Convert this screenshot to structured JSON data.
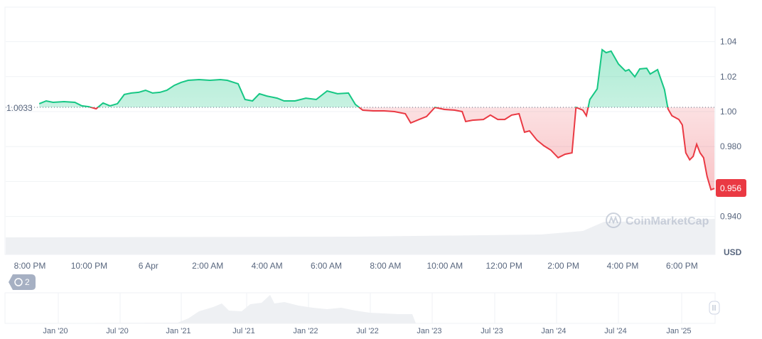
{
  "chart_data": {
    "type": "line",
    "baseline": 1.0033,
    "baseline_label": "1.0033",
    "current_price_label": "0.956",
    "unit_label": "USD",
    "watermark": "CoinMarketCap",
    "ylim": [
      0.93,
      1.05
    ],
    "y_ticks": [
      "1.04",
      "1.02",
      "1.00",
      "0.980",
      "0.940"
    ],
    "x_ticks": [
      "8:00 PM",
      "10:00 PM",
      "6 Apr",
      "2:00 AM",
      "4:00 AM",
      "6:00 AM",
      "8:00 AM",
      "10:00 AM",
      "12:00 PM",
      "2:00 PM",
      "4:00 PM",
      "6:00 PM"
    ],
    "grid": true,
    "colors": {
      "up": "#16c784",
      "down": "#ea3943",
      "grid": "#eff2f5",
      "volume": "#eef0f3"
    },
    "x": [
      "20:19",
      "20:33",
      "20:47",
      "21:09",
      "21:31",
      "21:45",
      "21:59",
      "22:14",
      "22:28",
      "22:42",
      "22:57",
      "23:11",
      "23:25",
      "23:40",
      "23:54",
      "00:08",
      "00:23",
      "00:37",
      "00:52",
      "01:06",
      "01:20",
      "01:42",
      "02:04",
      "02:25",
      "02:39",
      "03:01",
      "03:15",
      "03:30",
      "03:44",
      "03:59",
      "04:20",
      "04:34",
      "04:56",
      "05:18",
      "05:39",
      "06:01",
      "06:22",
      "06:44",
      "06:58",
      "07:13",
      "07:34",
      "07:56",
      "08:17",
      "08:39",
      "08:50",
      "09:07",
      "09:22",
      "09:39",
      "09:58",
      "10:19",
      "10:34",
      "10:41",
      "10:55",
      "11:17",
      "11:31",
      "11:46",
      "12:00",
      "12:14",
      "12:29",
      "12:40",
      "12:50",
      "13:05",
      "13:19",
      "13:33",
      "13:48",
      "14:02",
      "14:16",
      "14:24",
      "14:38",
      "14:45",
      "14:52",
      "15:07",
      "15:17",
      "15:25",
      "15:35",
      "15:50",
      "16:04",
      "16:11",
      "16:23",
      "16:33",
      "16:47",
      "16:54",
      "17:09",
      "17:23",
      "17:30",
      "17:38",
      "17:52",
      "17:59",
      "18:06",
      "18:14",
      "18:21",
      "18:28",
      "18:35",
      "18:42",
      "18:49",
      "18:57",
      "19:04"
    ],
    "values": [
      1.0045,
      1.0061,
      1.0053,
      1.0057,
      1.0053,
      1.0033,
      1.0028,
      1.0016,
      1.0049,
      1.0033,
      1.0045,
      1.0098,
      1.0106,
      1.011,
      1.0122,
      1.0106,
      1.011,
      1.0122,
      1.015,
      1.0167,
      1.0179,
      1.0183,
      1.0179,
      1.0183,
      1.0179,
      1.0159,
      1.0069,
      1.0061,
      1.0102,
      1.0089,
      1.0077,
      1.0061,
      1.0061,
      1.0077,
      1.0069,
      1.0118,
      1.0102,
      1.0106,
      1.0041,
      1.0008,
      1.0004,
      1.0004,
      1.0,
      0.9988,
      0.9935,
      0.9955,
      0.9972,
      1.0024,
      1.0012,
      1.0008,
      1.0,
      0.9943,
      0.9951,
      0.9955,
      0.998,
      0.9955,
      0.9955,
      0.998,
      0.9988,
      0.9882,
      0.989,
      0.9837,
      0.9805,
      0.978,
      0.9736,
      0.9756,
      0.9764,
      1.0024,
      1.0008,
      0.9976,
      1.0069,
      1.013,
      1.0354,
      1.0337,
      1.0346,
      1.0272,
      1.0232,
      1.024,
      1.0199,
      1.0244,
      1.0248,
      1.0215,
      1.024,
      1.0126,
      1.0016,
      0.9976,
      0.9955,
      0.9923,
      0.9764,
      0.9724,
      0.9744,
      0.9813,
      0.9764,
      0.9736,
      0.963,
      0.9553,
      0.956
    ]
  },
  "navigator": {
    "labels": [
      "Jan '20",
      "Jul '20",
      "Jan '21",
      "Jul '21",
      "Jan '22",
      "Jul '22",
      "Jan '23",
      "Jul '23",
      "Jan '24",
      "Jul '24",
      "Jan '25"
    ],
    "history_badge": "2"
  }
}
